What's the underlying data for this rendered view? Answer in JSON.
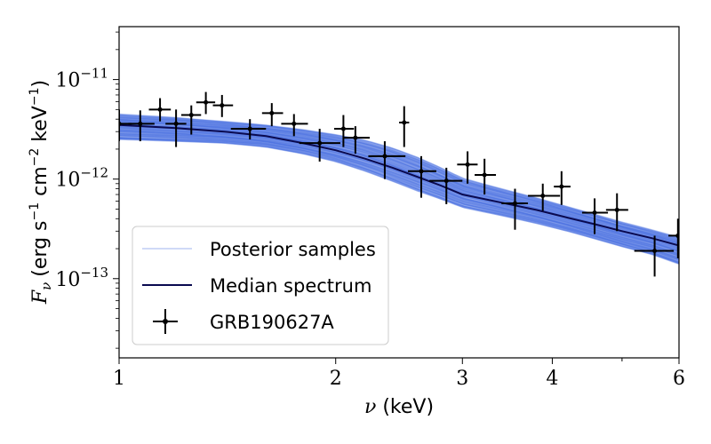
{
  "chart_data": {
    "type": "scatter",
    "xscale": "log",
    "yscale": "log",
    "xlim": [
      1,
      6
    ],
    "ylim": [
      1.6e-14,
      3.4e-11
    ],
    "x_ticks": [
      1,
      2,
      3,
      4,
      6
    ],
    "x_tick_labels": [
      "1",
      "2",
      "3",
      "4",
      "6"
    ],
    "y_ticks": [
      1e-13,
      1e-12,
      1e-11
    ],
    "y_tick_labels": [
      {
        "base": "10",
        "exp": "−13"
      },
      {
        "base": "10",
        "exp": "−12"
      },
      {
        "base": "10",
        "exp": "−11"
      }
    ],
    "xlabel": {
      "symbol": "ν",
      "text": " (keV)"
    },
    "ylabel": {
      "symbol": "F",
      "sub": "ν",
      "text": "(erg s",
      "s_exp": "−1",
      "mid": " cm",
      "cm_exp": "−2",
      "end": " keV",
      "kev_exp": "−1",
      "close": ")"
    },
    "legend": {
      "position": "lower-left",
      "entries": [
        "Posterior samples",
        "Median spectrum",
        "GRB190627A"
      ]
    },
    "colors": {
      "posterior": "#4169e1",
      "median": "#0a0a50",
      "data": "#000000"
    },
    "median_spectrum": {
      "x": [
        1.0,
        1.2,
        1.4,
        1.6,
        1.8,
        2.0,
        2.2,
        2.4,
        2.6,
        2.8,
        3.0,
        3.4,
        3.8,
        4.2,
        4.6,
        5.0,
        5.5,
        6.0
      ],
      "y": [
        3.5e-12,
        3.25e-12,
        3e-12,
        2.7e-12,
        2.3e-12,
        1.95e-12,
        1.6e-12,
        1.3e-12,
        1.05e-12,
        8.6e-13,
        7e-13,
        5.8e-13,
        4.9e-13,
        4.1e-13,
        3.5e-13,
        3e-13,
        2.55e-13,
        2.15e-13
      ]
    },
    "posterior_band": {
      "x": [
        1.0,
        1.2,
        1.4,
        1.6,
        1.8,
        2.0,
        2.2,
        2.4,
        2.6,
        2.8,
        3.0,
        3.4,
        3.8,
        4.2,
        4.6,
        5.0,
        5.5,
        6.0
      ],
      "lower": [
        2.5e-12,
        2.4e-12,
        2.3e-12,
        2.1e-12,
        1.8e-12,
        1.5e-12,
        1.2e-12,
        9.5e-13,
        7.6e-13,
        6.3e-13,
        5.2e-13,
        4.3e-13,
        3.6e-13,
        3e-13,
        2.5e-13,
        2.1e-13,
        1.75e-13,
        1.4e-13
      ],
      "upper": [
        4.5e-12,
        4.15e-12,
        3.8e-12,
        3.5e-12,
        3.15e-12,
        2.8e-12,
        2.45e-12,
        2.05e-12,
        1.65e-12,
        1.3e-12,
        1.02e-12,
        8e-13,
        6.5e-13,
        5.3e-13,
        4.4e-13,
        3.7e-13,
        3.1e-13,
        2.6e-13
      ]
    },
    "series": [
      {
        "name": "GRB190627A",
        "points": [
          {
            "x": 1.0,
            "y": 3.6e-12,
            "x_lo": 0.98,
            "x_hi": 1.04,
            "y_lo": 2.4e-12,
            "y_hi": 5e-12
          },
          {
            "x": 1.07,
            "y": 3.6e-12,
            "x_lo": 1.03,
            "x_hi": 1.12,
            "y_lo": 2.4e-12,
            "y_hi": 4.9e-12
          },
          {
            "x": 1.14,
            "y": 5e-12,
            "x_lo": 1.1,
            "x_hi": 1.18,
            "y_lo": 3.8e-12,
            "y_hi": 6.5e-12
          },
          {
            "x": 1.2,
            "y": 3.6e-12,
            "x_lo": 1.16,
            "x_hi": 1.24,
            "y_lo": 2.1e-12,
            "y_hi": 5e-12
          },
          {
            "x": 1.26,
            "y": 4.4e-12,
            "x_lo": 1.22,
            "x_hi": 1.3,
            "y_lo": 2.8e-12,
            "y_hi": 5.5e-12
          },
          {
            "x": 1.32,
            "y": 5.9e-12,
            "x_lo": 1.28,
            "x_hi": 1.36,
            "y_lo": 4.5e-12,
            "y_hi": 7.5e-12
          },
          {
            "x": 1.39,
            "y": 5.5e-12,
            "x_lo": 1.35,
            "x_hi": 1.44,
            "y_lo": 4.2e-12,
            "y_hi": 7e-12
          },
          {
            "x": 1.52,
            "y": 3.2e-12,
            "x_lo": 1.43,
            "x_hi": 1.6,
            "y_lo": 2.5e-12,
            "y_hi": 4e-12
          },
          {
            "x": 1.63,
            "y": 4.6e-12,
            "x_lo": 1.58,
            "x_hi": 1.69,
            "y_lo": 3.4e-12,
            "y_hi": 5.8e-12
          },
          {
            "x": 1.75,
            "y": 3.6e-12,
            "x_lo": 1.68,
            "x_hi": 1.83,
            "y_lo": 2.7e-12,
            "y_hi": 4.5e-12
          },
          {
            "x": 1.9,
            "y": 2.3e-12,
            "x_lo": 1.78,
            "x_hi": 2.03,
            "y_lo": 1.5e-12,
            "y_hi": 3.2e-12
          },
          {
            "x": 2.05,
            "y": 3.2e-12,
            "x_lo": 1.99,
            "x_hi": 2.12,
            "y_lo": 2.1e-12,
            "y_hi": 4.4e-12
          },
          {
            "x": 2.13,
            "y": 2.6e-12,
            "x_lo": 2.05,
            "x_hi": 2.23,
            "y_lo": 1.8e-12,
            "y_hi": 3.4e-12
          },
          {
            "x": 2.34,
            "y": 1.7e-12,
            "x_lo": 2.22,
            "x_hi": 2.5,
            "y_lo": 1e-12,
            "y_hi": 2.4e-12
          },
          {
            "x": 2.49,
            "y": 3.7e-12,
            "x_lo": 2.45,
            "x_hi": 2.53,
            "y_lo": 2.1e-12,
            "y_hi": 5.4e-12
          },
          {
            "x": 2.63,
            "y": 1.2e-12,
            "x_lo": 2.52,
            "x_hi": 2.76,
            "y_lo": 6.5e-13,
            "y_hi": 1.7e-12
          },
          {
            "x": 2.85,
            "y": 9.6e-13,
            "x_lo": 2.7,
            "x_hi": 3.0,
            "y_lo": 5.6e-13,
            "y_hi": 1.3e-12
          },
          {
            "x": 3.05,
            "y": 1.4e-12,
            "x_lo": 2.95,
            "x_hi": 3.15,
            "y_lo": 9e-13,
            "y_hi": 1.9e-12
          },
          {
            "x": 3.22,
            "y": 1.1e-12,
            "x_lo": 3.12,
            "x_hi": 3.34,
            "y_lo": 7e-13,
            "y_hi": 1.6e-12
          },
          {
            "x": 3.55,
            "y": 5.7e-13,
            "x_lo": 3.4,
            "x_hi": 3.7,
            "y_lo": 3.1e-13,
            "y_hi": 8e-13
          },
          {
            "x": 3.88,
            "y": 6.8e-13,
            "x_lo": 3.7,
            "x_hi": 4.1,
            "y_lo": 4.8e-13,
            "y_hi": 9e-13
          },
          {
            "x": 4.12,
            "y": 8.4e-13,
            "x_lo": 4.02,
            "x_hi": 4.24,
            "y_lo": 5.5e-13,
            "y_hi": 1.2e-12
          },
          {
            "x": 4.58,
            "y": 4.6e-13,
            "x_lo": 4.4,
            "x_hi": 4.78,
            "y_lo": 2.8e-13,
            "y_hi": 6.4e-13
          },
          {
            "x": 4.92,
            "y": 4.9e-13,
            "x_lo": 4.75,
            "x_hi": 5.1,
            "y_lo": 3e-13,
            "y_hi": 7.2e-13
          },
          {
            "x": 5.55,
            "y": 1.9e-13,
            "x_lo": 5.2,
            "x_hi": 5.9,
            "y_lo": 1.05e-13,
            "y_hi": 2.7e-13
          },
          {
            "x": 5.98,
            "y": 2.7e-13,
            "x_lo": 5.8,
            "x_hi": 6.15,
            "y_lo": 1.6e-13,
            "y_hi": 4e-13
          }
        ]
      }
    ]
  }
}
